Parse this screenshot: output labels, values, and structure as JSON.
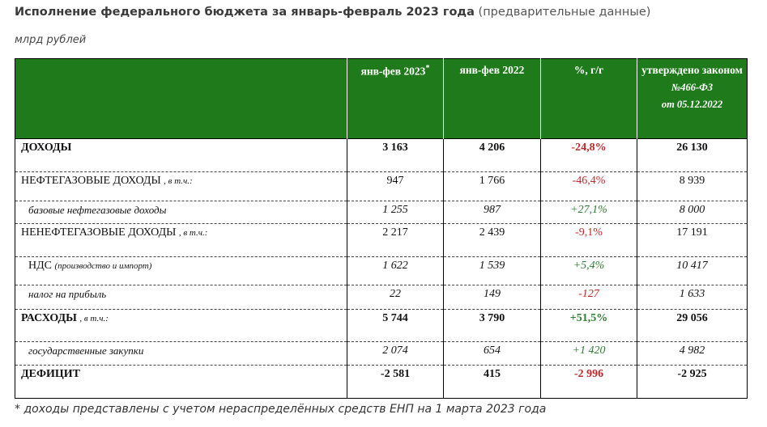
{
  "header": {
    "title": "Исполнение федерального бюджета за январь-февраль 2023 года",
    "title_note": "(предварительные данные)",
    "unit": "млрд рублей"
  },
  "table": {
    "columns": [
      {
        "text": "янв-фев 2023",
        "mark": "*"
      },
      {
        "text": "янв-фев 2022"
      },
      {
        "text": "%, г/г"
      },
      {
        "text": "утверждено законом",
        "lines": [
          "№466-ФЗ",
          "от 05.12.2022"
        ]
      }
    ],
    "rows": [
      {
        "label": "ДОХОДЫ",
        "cells": [
          "3 163",
          "4 206",
          "-24,8%",
          "26 130"
        ]
      },
      {
        "label": "НЕФТЕГАЗОВЫЕ ДОХОДЫ",
        "note": ", в т.ч.:",
        "cells": [
          "947",
          "1 766",
          "-46,4%",
          "8 939"
        ]
      },
      {
        "label": "базовые нефтегазовые доходы",
        "cells": [
          "1 255",
          "987",
          "+27,1%",
          "8 000"
        ]
      },
      {
        "label": "НЕНЕФТЕГАЗОВЫЕ ДОХОДЫ",
        "note": ", в т.ч.:",
        "cells": [
          "2 217",
          "2 439",
          "-9,1%",
          "17 191"
        ]
      },
      {
        "label": "НДС",
        "note": "(производство и импорт)",
        "cells": [
          "1 622",
          "1 539",
          "+5,4%",
          "10 417"
        ]
      },
      {
        "label": "налог на прибыль",
        "cells": [
          "22",
          "149",
          "-127",
          "1 633"
        ]
      },
      {
        "label": "РАСХОДЫ",
        "note": ", в т.ч.:",
        "cells": [
          "5 744",
          "3 790",
          "+51,5%",
          "29 056"
        ]
      },
      {
        "label": "государственные закупки",
        "cells": [
          "2 074",
          "654",
          "+1 420",
          "4 982"
        ]
      },
      {
        "label": "ДЕФИЦИТ",
        "cells": [
          "-2 581",
          "415",
          "-2 996",
          "-2 925"
        ]
      }
    ]
  },
  "footnote": "* доходы представлены с учетом нераспределённых средств ЕНП на 1 марта 2023 года"
}
